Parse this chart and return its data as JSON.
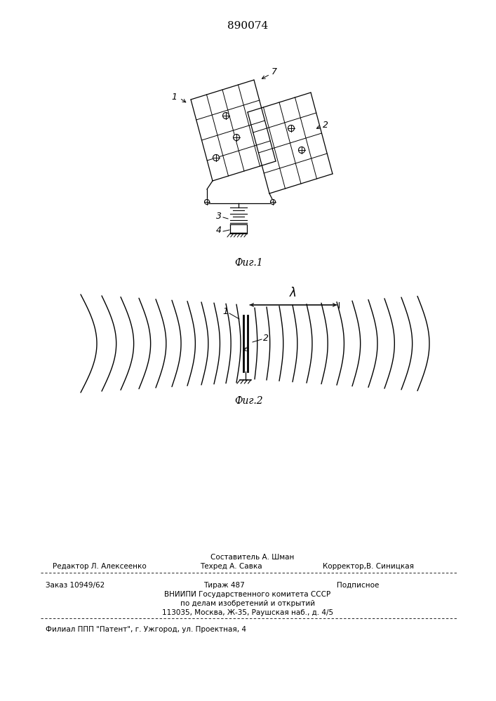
{
  "patent_number": "890074",
  "fig1_caption": "Фиг.1",
  "fig2_caption": "Фиг.2",
  "label_1_fig1": "1",
  "label_2_fig1": "2",
  "label_3_fig1": "3",
  "label_4_fig1": "4",
  "label_7_fig1": "7",
  "label_1_fig2": "1",
  "label_2_fig2": "2",
  "label_lambda": "λ",
  "label_e": "e",
  "footer_line1": "Составитель А. Шман",
  "footer_line2_left": "Редактор Л. Алексеенко",
  "footer_line2_mid": "Техред А. Савка",
  "footer_line2_right": "Корректор,B. Синицкая",
  "footer_line3_left": "Заказ 10949/62",
  "footer_line3_mid": "Тираж 487",
  "footer_line3_right": "Подписное",
  "footer_line4": "ВНИИПИ Государственного комитета СССР",
  "footer_line5": "по делам изобретений и открытий",
  "footer_line6": "113035, Москва, Ж-35, Раушская наб., д. 4/5",
  "footer_line7": "Филиал ППП \"Патент\", г. Ужгород, ул. Проектная, 4",
  "bg_color": "#ffffff",
  "line_color": "#000000"
}
